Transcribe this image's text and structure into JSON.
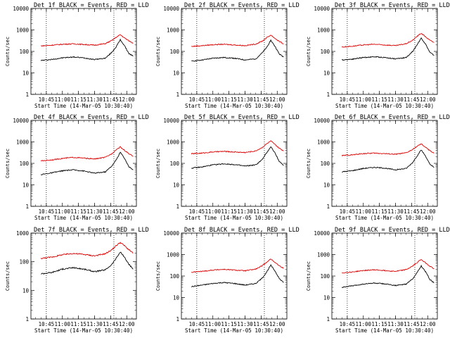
{
  "figure": {
    "x_tick_labels": [
      "10:45",
      "11:00",
      "11:15",
      "11:30",
      "11:45",
      "12:00"
    ],
    "xlabel": "Start Time (14-Mar-05 10:30:40)",
    "ylabel": "Counts/sec",
    "y_tick_labels_full": [
      "1",
      "10",
      "100",
      "1000",
      "10000"
    ],
    "y_tick_labels_short": [
      "1",
      "10",
      "100",
      "1000"
    ]
  },
  "chart_data": [
    {
      "type": "line",
      "title": "Det 1f BLACK = Events, RED = LLD",
      "xlabel": "Start Time (14-Mar-05 10:30:40)",
      "ylabel": "Counts/sec",
      "yscale": "log",
      "xlim": [
        "10:30:40",
        "12:09:00"
      ],
      "ylim": [
        1,
        10000
      ],
      "x": [
        "10:40",
        "10:50",
        "11:00",
        "11:10",
        "11:20",
        "11:30",
        "11:40",
        "11:46",
        "11:50",
        "11:54",
        "11:58",
        "12:02",
        "12:06"
      ],
      "series": [
        {
          "name": "Events",
          "color": "#000000",
          "values": [
            38,
            42,
            50,
            55,
            50,
            42,
            48,
            90,
            160,
            350,
            180,
            80,
            60
          ]
        },
        {
          "name": "LLD",
          "color": "#dd0000",
          "values": [
            180,
            195,
            215,
            225,
            210,
            195,
            230,
            320,
            450,
            600,
            420,
            310,
            240
          ]
        }
      ],
      "markers": [
        "10:45",
        "11:48"
      ]
    },
    {
      "type": "line",
      "title": "Det 2f BLACK = Events, RED = LLD",
      "xlabel": "Start Time (14-Mar-05 10:30:40)",
      "ylabel": "Counts/sec",
      "yscale": "log",
      "xlim": [
        "10:30:40",
        "12:09:00"
      ],
      "ylim": [
        1,
        10000
      ],
      "x": [
        "10:40",
        "10:50",
        "11:00",
        "11:10",
        "11:20",
        "11:30",
        "11:40",
        "11:46",
        "11:50",
        "11:54",
        "11:58",
        "12:02",
        "12:06"
      ],
      "series": [
        {
          "name": "Events",
          "color": "#000000",
          "values": [
            35,
            40,
            48,
            52,
            48,
            40,
            45,
            85,
            150,
            330,
            170,
            75,
            55
          ]
        },
        {
          "name": "LLD",
          "color": "#dd0000",
          "values": [
            170,
            185,
            205,
            215,
            200,
            185,
            220,
            300,
            430,
            580,
            400,
            290,
            220
          ]
        }
      ],
      "markers": [
        "10:45",
        "11:48"
      ]
    },
    {
      "type": "line",
      "title": "Det 3f BLACK = Events, RED = LLD",
      "xlabel": "Start Time (14-Mar-05 10:30:40)",
      "ylabel": "Counts/sec",
      "yscale": "log",
      "xlim": [
        "10:30:40",
        "12:09:00"
      ],
      "ylim": [
        1,
        10000
      ],
      "x": [
        "10:40",
        "10:50",
        "11:00",
        "11:10",
        "11:20",
        "11:30",
        "11:40",
        "11:46",
        "11:50",
        "11:54",
        "11:58",
        "12:02",
        "12:06"
      ],
      "series": [
        {
          "name": "Events",
          "color": "#000000",
          "values": [
            40,
            44,
            52,
            56,
            52,
            45,
            52,
            100,
            200,
            420,
            220,
            90,
            65
          ]
        },
        {
          "name": "LLD",
          "color": "#dd0000",
          "values": [
            160,
            175,
            200,
            215,
            200,
            185,
            230,
            330,
            500,
            700,
            480,
            330,
            260
          ]
        }
      ],
      "markers": [
        "10:45",
        "11:48"
      ]
    },
    {
      "type": "line",
      "title": "Det 4f BLACK = Events, RED = LLD",
      "xlabel": "Start Time (14-Mar-05 10:30:40)",
      "ylabel": "Counts/sec",
      "yscale": "log",
      "xlim": [
        "10:30:40",
        "12:09:00"
      ],
      "ylim": [
        1,
        10000
      ],
      "x": [
        "10:40",
        "10:50",
        "11:00",
        "11:10",
        "11:20",
        "11:30",
        "11:40",
        "11:46",
        "11:50",
        "11:54",
        "11:58",
        "12:02",
        "12:06"
      ],
      "series": [
        {
          "name": "Events",
          "color": "#000000",
          "values": [
            30,
            36,
            45,
            50,
            44,
            35,
            40,
            75,
            140,
            330,
            170,
            70,
            50
          ]
        },
        {
          "name": "LLD",
          "color": "#dd0000",
          "values": [
            130,
            145,
            170,
            190,
            175,
            160,
            190,
            280,
            430,
            580,
            400,
            280,
            210
          ]
        }
      ],
      "markers": [
        "10:45",
        "11:48"
      ]
    },
    {
      "type": "line",
      "title": "Det 5f BLACK = Events, RED = LLD",
      "xlabel": "Start Time (14-Mar-05 10:30:40)",
      "ylabel": "Counts/sec",
      "yscale": "log",
      "xlim": [
        "10:30:40",
        "12:09:00"
      ],
      "ylim": [
        1,
        10000
      ],
      "x": [
        "10:40",
        "10:50",
        "11:00",
        "11:10",
        "11:20",
        "11:30",
        "11:40",
        "11:46",
        "11:50",
        "11:54",
        "11:58",
        "12:02",
        "12:06"
      ],
      "series": [
        {
          "name": "Events",
          "color": "#000000",
          "values": [
            60,
            68,
            85,
            95,
            88,
            75,
            85,
            150,
            300,
            600,
            300,
            120,
            80
          ]
        },
        {
          "name": "LLD",
          "color": "#dd0000",
          "values": [
            280,
            300,
            340,
            360,
            340,
            320,
            380,
            550,
            800,
            1100,
            750,
            500,
            380
          ]
        }
      ],
      "markers": [
        "10:45",
        "11:48"
      ]
    },
    {
      "type": "line",
      "title": "Det 6f BLACK = Events, RED = LLD",
      "xlabel": "Start Time (14-Mar-05 10:30:40)",
      "ylabel": "Counts/sec",
      "yscale": "log",
      "xlim": [
        "10:30:40",
        "12:09:00"
      ],
      "ylim": [
        1,
        10000
      ],
      "x": [
        "10:40",
        "10:50",
        "11:00",
        "11:10",
        "11:20",
        "11:30",
        "11:40",
        "11:46",
        "11:50",
        "11:54",
        "11:58",
        "12:02",
        "12:06"
      ],
      "series": [
        {
          "name": "Events",
          "color": "#000000",
          "values": [
            40,
            46,
            58,
            65,
            60,
            50,
            58,
            110,
            220,
            420,
            220,
            90,
            65
          ]
        },
        {
          "name": "LLD",
          "color": "#dd0000",
          "values": [
            230,
            250,
            285,
            300,
            285,
            265,
            310,
            440,
            620,
            800,
            560,
            390,
            300
          ]
        }
      ],
      "markers": [
        "10:45",
        "11:48"
      ]
    },
    {
      "type": "line",
      "title": "Det 7f BLACK = Events, RED = LLD",
      "xlabel": "Start Time (14-Mar-05 10:30:40)",
      "ylabel": "Counts/sec",
      "yscale": "log",
      "xlim": [
        "10:30:40",
        "12:09:00"
      ],
      "ylim": [
        1,
        1000
      ],
      "x": [
        "10:40",
        "10:50",
        "11:00",
        "11:10",
        "11:20",
        "11:30",
        "11:40",
        "11:46",
        "11:50",
        "11:54",
        "11:58",
        "12:02",
        "12:06"
      ],
      "series": [
        {
          "name": "Events",
          "color": "#000000",
          "values": [
            38,
            42,
            55,
            62,
            55,
            45,
            52,
            80,
            130,
            220,
            140,
            80,
            55
          ]
        },
        {
          "name": "LLD",
          "color": "#dd0000",
          "values": [
            130,
            145,
            175,
            195,
            180,
            160,
            190,
            260,
            360,
            470,
            360,
            260,
            200
          ]
        }
      ],
      "markers": [
        "10:45",
        "11:48"
      ]
    },
    {
      "type": "line",
      "title": "Det 8f BLACK = Events, RED = LLD",
      "xlabel": "Start Time (14-Mar-05 10:30:40)",
      "ylabel": "Counts/sec",
      "yscale": "log",
      "xlim": [
        "10:30:40",
        "12:09:00"
      ],
      "ylim": [
        1,
        10000
      ],
      "x": [
        "10:40",
        "10:50",
        "11:00",
        "11:10",
        "11:20",
        "11:30",
        "11:40",
        "11:46",
        "11:50",
        "11:54",
        "11:58",
        "12:02",
        "12:06"
      ],
      "series": [
        {
          "name": "Events",
          "color": "#000000",
          "values": [
            32,
            38,
            45,
            50,
            45,
            38,
            45,
            80,
            150,
            320,
            170,
            75,
            50
          ]
        },
        {
          "name": "LLD",
          "color": "#dd0000",
          "values": [
            150,
            165,
            190,
            205,
            190,
            175,
            210,
            300,
            440,
            620,
            430,
            300,
            230
          ]
        }
      ],
      "markers": [
        "10:45",
        "11:48"
      ]
    },
    {
      "type": "line",
      "title": "Det 9f BLACK = Events, RED = LLD",
      "xlabel": "Start Time (14-Mar-05 10:30:40)",
      "ylabel": "Counts/sec",
      "yscale": "log",
      "xlim": [
        "10:30:40",
        "12:09:00"
      ],
      "ylim": [
        1,
        10000
      ],
      "x": [
        "10:40",
        "10:50",
        "11:00",
        "11:10",
        "11:20",
        "11:30",
        "11:40",
        "11:46",
        "11:50",
        "11:54",
        "11:58",
        "12:02",
        "12:06"
      ],
      "series": [
        {
          "name": "Events",
          "color": "#000000",
          "values": [
            30,
            35,
            42,
            47,
            43,
            36,
            42,
            75,
            140,
            300,
            160,
            70,
            48
          ]
        },
        {
          "name": "LLD",
          "color": "#dd0000",
          "values": [
            140,
            155,
            180,
            195,
            180,
            165,
            200,
            290,
            420,
            600,
            410,
            290,
            220
          ]
        }
      ],
      "markers": [
        "10:45",
        "11:48"
      ]
    }
  ]
}
